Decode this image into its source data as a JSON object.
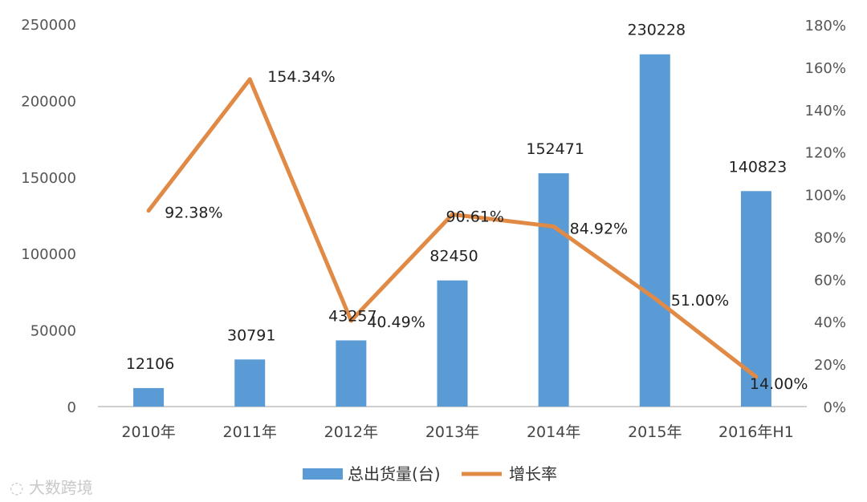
{
  "chart_data": {
    "type": "bar",
    "categories": [
      "2010年",
      "2011年",
      "2012年",
      "2013年",
      "2014年",
      "2015年",
      "2016年H1"
    ],
    "series": [
      {
        "name": "总出货量(台)",
        "type": "bar",
        "axis": "left",
        "values": [
          12106,
          30791,
          43257,
          82450,
          152471,
          230228,
          140823
        ],
        "labels": [
          "12106",
          "30791",
          "43257",
          "82450",
          "152471",
          "230228",
          "140823"
        ],
        "color": "#5b9bd5"
      },
      {
        "name": "增长率",
        "type": "line",
        "axis": "right",
        "values": [
          92.38,
          154.34,
          40.49,
          90.61,
          84.92,
          51.0,
          14.0
        ],
        "labels": [
          "92.38%",
          "154.34%",
          "40.49%",
          "90.61%",
          "84.92%",
          "51.00%",
          "14.00%"
        ],
        "color": "#e08a45"
      }
    ],
    "y_left": {
      "lim": [
        0,
        250000
      ],
      "ticks": [
        "0",
        "50000",
        "100000",
        "150000",
        "200000",
        "250000"
      ]
    },
    "y_right": {
      "lim": [
        0,
        180
      ],
      "ticks": [
        "0%",
        "20%",
        "40%",
        "60%",
        "80%",
        "100%",
        "120%",
        "140%",
        "160%",
        "180%"
      ]
    },
    "grid": false,
    "legend": "bottom"
  },
  "watermark": "大数跨境"
}
